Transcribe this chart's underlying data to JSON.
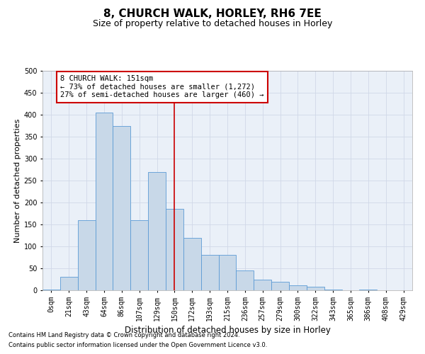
{
  "title1": "8, CHURCH WALK, HORLEY, RH6 7EE",
  "title2": "Size of property relative to detached houses in Horley",
  "xlabel": "Distribution of detached houses by size in Horley",
  "ylabel": "Number of detached properties",
  "footer1": "Contains HM Land Registry data © Crown copyright and database right 2024.",
  "footer2": "Contains public sector information licensed under the Open Government Licence v3.0.",
  "bin_labels": [
    "0sqm",
    "21sqm",
    "43sqm",
    "64sqm",
    "86sqm",
    "107sqm",
    "129sqm",
    "150sqm",
    "172sqm",
    "193sqm",
    "215sqm",
    "236sqm",
    "257sqm",
    "279sqm",
    "300sqm",
    "322sqm",
    "343sqm",
    "365sqm",
    "386sqm",
    "408sqm",
    "429sqm"
  ],
  "bar_values": [
    2,
    30,
    160,
    405,
    375,
    160,
    270,
    185,
    120,
    80,
    80,
    45,
    25,
    20,
    12,
    8,
    2,
    0,
    2,
    0,
    0
  ],
  "bar_color": "#c8d8e8",
  "bar_edge_color": "#5b9bd5",
  "grid_color": "#d0d8e8",
  "background_color": "#eaf0f8",
  "property_line_x": 7,
  "property_line_color": "#cc0000",
  "annotation_text": "8 CHURCH WALK: 151sqm\n← 73% of detached houses are smaller (1,272)\n27% of semi-detached houses are larger (460) →",
  "annotation_box_color": "#ffffff",
  "annotation_box_edge": "#cc0000",
  "ylim": [
    0,
    500
  ],
  "yticks": [
    0,
    50,
    100,
    150,
    200,
    250,
    300,
    350,
    400,
    450,
    500
  ],
  "title1_fontsize": 11,
  "title2_fontsize": 9,
  "xlabel_fontsize": 8.5,
  "ylabel_fontsize": 8,
  "tick_fontsize": 7,
  "annotation_fontsize": 7.5,
  "fig_width": 6.0,
  "fig_height": 5.0,
  "fig_dpi": 100
}
